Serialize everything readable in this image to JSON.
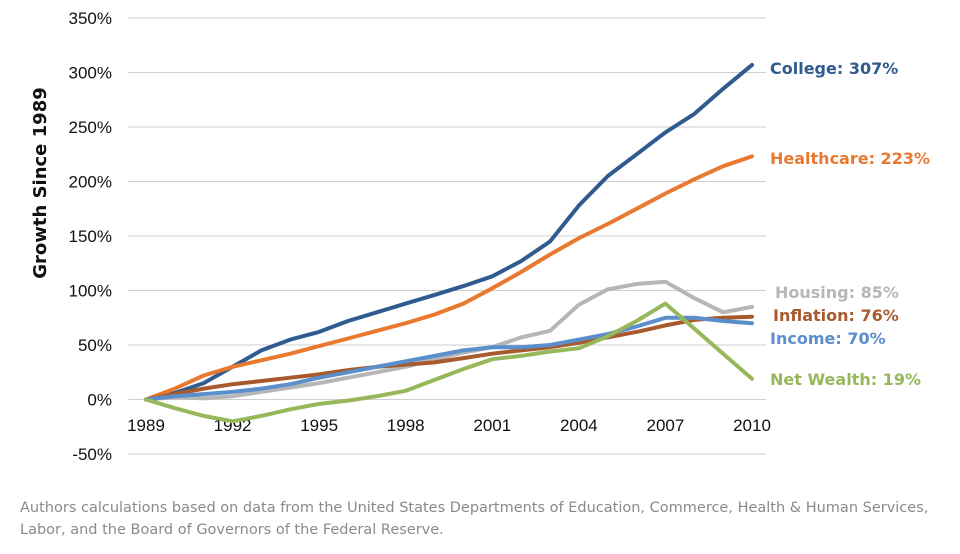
{
  "chart_data": {
    "type": "line",
    "title": "",
    "xlabel": "",
    "ylabel": "Growth Since 1989",
    "x": [
      1989,
      1990,
      1991,
      1992,
      1993,
      1994,
      1995,
      1996,
      1997,
      1998,
      1999,
      2000,
      2001,
      2002,
      2003,
      2004,
      2005,
      2006,
      2007,
      2008,
      2009,
      2010
    ],
    "x_ticks": [
      "1989",
      "1992",
      "1995",
      "1998",
      "2001",
      "2004",
      "2007",
      "2010"
    ],
    "y_ticks": [
      "-50%",
      "0%",
      "50%",
      "100%",
      "150%",
      "200%",
      "250%",
      "300%",
      "350%"
    ],
    "ylim": [
      -50,
      350
    ],
    "xlim": [
      1989,
      2010
    ],
    "grid": true,
    "series": [
      {
        "name": "College",
        "label": "College: 307%",
        "color": "#2f5b8f",
        "values": [
          0,
          6,
          15,
          30,
          45,
          55,
          62,
          72,
          80,
          88,
          96,
          104,
          113,
          127,
          145,
          178,
          205,
          225,
          245,
          262,
          285,
          307
        ]
      },
      {
        "name": "Healthcare",
        "label": "Healthcare: 223%",
        "color": "#e8792e",
        "values": [
          0,
          10,
          22,
          30,
          36,
          42,
          49,
          56,
          63,
          70,
          78,
          88,
          102,
          117,
          133,
          148,
          161,
          175,
          189,
          202,
          214,
          223
        ]
      },
      {
        "name": "Housing",
        "label": "Housing: 85%",
        "color": "#b6b6b6",
        "values": [
          0,
          2,
          1,
          3,
          7,
          11,
          15,
          20,
          25,
          30,
          37,
          43,
          48,
          57,
          63,
          87,
          101,
          106,
          108,
          93,
          80,
          85
        ]
      },
      {
        "name": "Inflation",
        "label": "Inflation: 76%",
        "color": "#a85a2e",
        "values": [
          0,
          5,
          10,
          14,
          17,
          20,
          23,
          27,
          30,
          32,
          34,
          38,
          42,
          45,
          48,
          52,
          57,
          62,
          68,
          73,
          75,
          76
        ]
      },
      {
        "name": "Income",
        "label": "Income: 70%",
        "color": "#5b8fcb",
        "values": [
          0,
          3,
          5,
          7,
          10,
          14,
          20,
          25,
          30,
          35,
          40,
          45,
          48,
          48,
          50,
          55,
          60,
          67,
          75,
          75,
          72,
          70
        ]
      },
      {
        "name": "Net Wealth",
        "label": "Net Wealth: 19%",
        "color": "#96b85a",
        "values": [
          0,
          -8,
          -15,
          -20,
          -15,
          -9,
          -4,
          -1,
          3,
          8,
          18,
          28,
          37,
          40,
          44,
          47,
          58,
          72,
          88,
          65,
          42,
          19
        ]
      }
    ]
  },
  "caption": "Authors calculations based on data from the United States Departments of Education, Commerce, Health & Human Services, Labor, and the Board of Governors of the Federal Reserve."
}
